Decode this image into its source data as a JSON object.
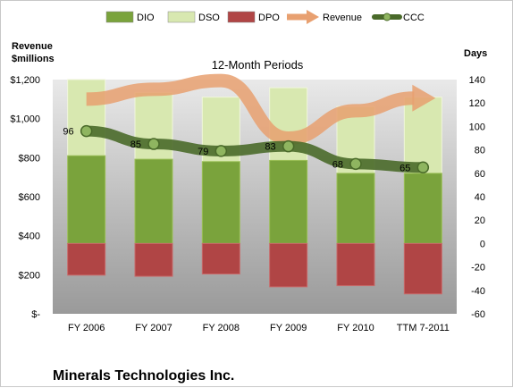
{
  "company": "Minerals Technologies Inc.",
  "chart_data": {
    "type": "bar",
    "subtitle": "12-Month Periods",
    "ylabel_left": "Revenue\n$millions",
    "ylabel_right": "Days",
    "categories": [
      "FY 2006",
      "FY 2007",
      "FY 2008",
      "FY 2009",
      "FY 2010",
      "TTM 7-2011"
    ],
    "left_axis": {
      "min": 0,
      "max": 1200,
      "step": 200,
      "tick_labels": [
        "$-",
        "$200",
        "$400",
        "$600",
        "$800",
        "$1,000",
        "$1,200"
      ]
    },
    "right_axis": {
      "min": -60,
      "max": 140,
      "step": 20,
      "tick_labels": [
        "-60",
        "-40",
        "-20",
        "0",
        "20",
        "40",
        "60",
        "80",
        "100",
        "120",
        "140"
      ]
    },
    "series": [
      {
        "name": "DIO",
        "axis": "right",
        "kind": "stacked-bar",
        "color": "#7aa33c",
        "values": [
          75,
          72,
          70,
          71,
          60,
          60
        ]
      },
      {
        "name": "DSO",
        "axis": "right",
        "kind": "stacked-bar",
        "color": "#d8e8b0",
        "values": [
          65,
          57,
          55,
          62,
          57,
          65
        ]
      },
      {
        "name": "DPO",
        "axis": "right",
        "kind": "negative-bar",
        "color": "#b04545",
        "values": [
          -27,
          -28,
          -26,
          -37,
          -36,
          -43
        ]
      },
      {
        "name": "Revenue",
        "axis": "left",
        "kind": "arrow-line",
        "color": "#e8a070",
        "values": [
          1100,
          1150,
          1195,
          900,
          1040,
          1105
        ]
      },
      {
        "name": "CCC",
        "axis": "right",
        "kind": "line",
        "color": "#4a6a2a",
        "values": [
          96,
          85,
          79,
          83,
          68,
          65
        ],
        "labels": [
          "96",
          "85",
          "79",
          "83",
          "68",
          "65"
        ]
      }
    ],
    "legend": "top",
    "grid": false
  }
}
